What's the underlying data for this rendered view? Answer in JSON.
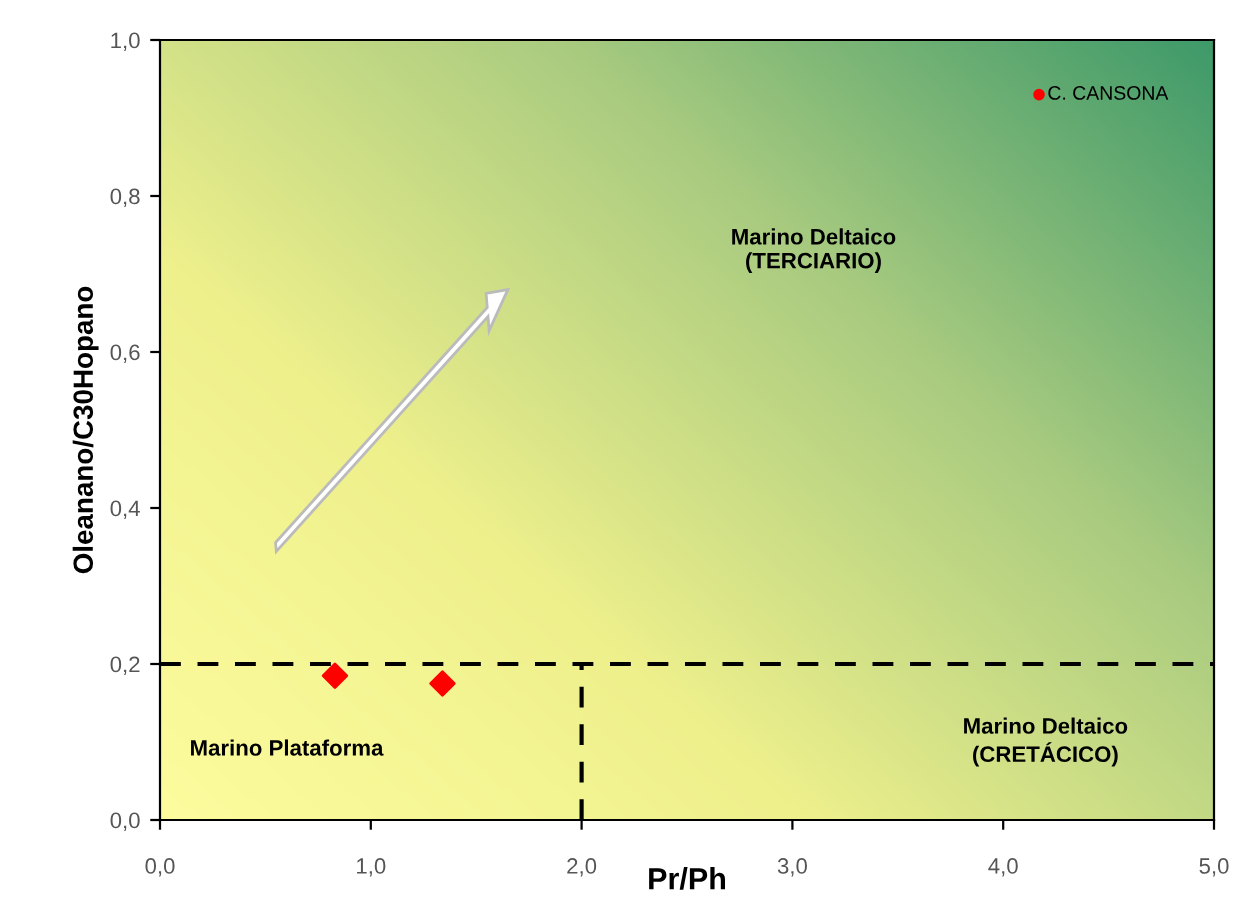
{
  "chart_data": {
    "type": "scatter",
    "xlabel": "Pr/Ph",
    "ylabel": "Oleanano/C30Hopano",
    "series": [
      {
        "color": "#ff0000",
        "marker": "diamond",
        "x": [
          0.83,
          1.34
        ],
        "values": [
          0.185,
          0.175
        ]
      },
      {
        "color": "#ff0000",
        "marker": "circle",
        "x": [
          4.17
        ],
        "values": [
          0.93
        ]
      }
    ],
    "xlim": [
      0,
      5
    ],
    "ylim": [
      0,
      1
    ],
    "xticks": [
      {
        "value": 0,
        "label": "0,0"
      },
      {
        "value": 1,
        "label": "1,0"
      },
      {
        "value": 2,
        "label": "2,0"
      },
      {
        "value": 3,
        "label": "3,0"
      },
      {
        "value": 4,
        "label": "4,0"
      },
      {
        "value": 5,
        "label": "5,0"
      }
    ],
    "yticks": [
      {
        "value": 0,
        "label": "0,0"
      },
      {
        "value": 0.2,
        "label": "0,2"
      },
      {
        "value": 0.4,
        "label": "0,4"
      },
      {
        "value": 0.6,
        "label": "0,6"
      },
      {
        "value": 0.8,
        "label": "0,8"
      },
      {
        "value": 1,
        "label": "1,0"
      }
    ],
    "ref_lines": [
      {
        "axis": "y",
        "value": 0.2,
        "line_style": "dashed",
        "color": "#000000"
      },
      {
        "axis": "x",
        "value": 2,
        "line_style": "dashed",
        "color": "#000000"
      }
    ],
    "annotations": [
      {
        "text": "C. CANSONA",
        "x": 4.17,
        "y": 0.93
      },
      "Marino Deltaico\n(TERCIARIO)",
      "Marino Plataforma",
      "Marino Deltaico\n(CRETÁCICO)"
    ],
    "grid": false,
    "legend": false
  }
}
